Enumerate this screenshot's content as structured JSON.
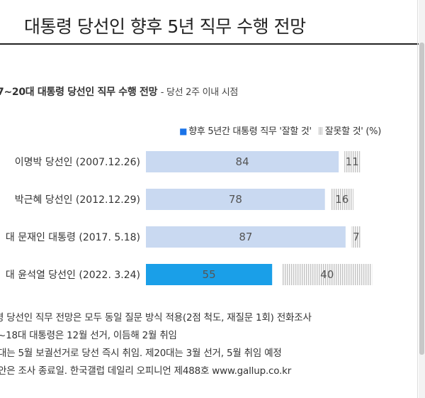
{
  "page": {
    "title": "대통령 당선인 향후 5년 직무 수행 전망"
  },
  "chart_data": {
    "type": "bar",
    "stacked": true,
    "orientation": "horizontal",
    "title": "7~20대 대통령 당선인 직무 수행 전망",
    "subtitle": "- 당선 2주 이내 시점",
    "unit": "(%)",
    "legend": {
      "placement": "top-right",
      "items": [
        "향후 5년간 대통령 직무 '잘할 것'",
        "잘못할 것'"
      ]
    },
    "categories": [
      "이명박 당선인 (2007.12.26)",
      "박근혜 당선인 (2012.12.29)",
      "대 문재인 대통령 (2017. 5.18)",
      "대 윤석열 당선인 (2022. 3.24)"
    ],
    "series": [
      {
        "name": "향후 5년간 대통령 직무 '잘할 것'",
        "values": [
          84,
          78,
          87,
          55
        ],
        "colors": [
          "#c9d9f1",
          "#c9d9f1",
          "#c9d9f1",
          "#1a9fe8"
        ]
      },
      {
        "name": "잘못할 것'",
        "values": [
          11,
          16,
          7,
          40
        ],
        "colors": [
          "#d2d2d2",
          "#d2d2d2",
          "#d2d2d2",
          "#d2d2d2"
        ]
      }
    ],
    "xlim": [
      0,
      100
    ],
    "grid": false
  },
  "notes": [
    "령 당선인 직무 전망은 모두 동일 질문 방식 적용(2점 척도, 재질문 1회) 전화조사",
    "~18대 대통령은 12월 선거, 이듬해 2월 취임",
    "대는 5월 보궐선거로 당선 즉시 취임. 제20대는 3월 선거, 5월 취임 예정",
    "안은 조사 종료일. 한국갤럽 데일리 오피니언 제488호 www.gallup.co.kr"
  ]
}
